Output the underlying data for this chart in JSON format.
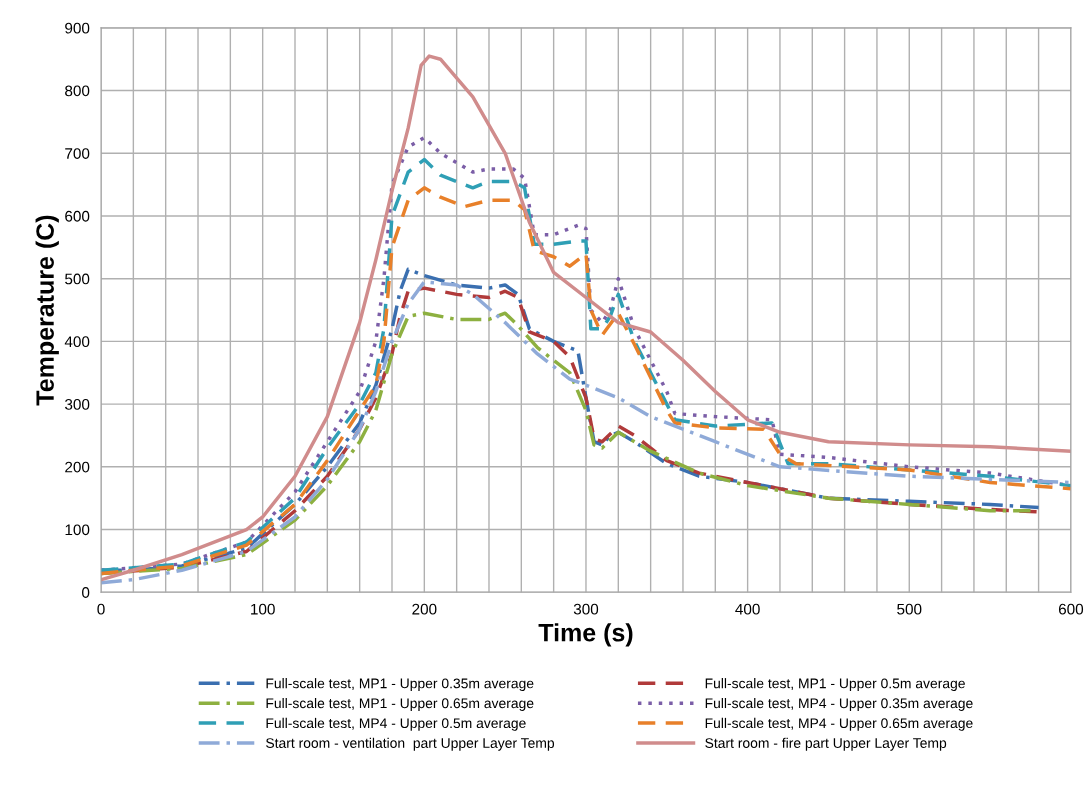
{
  "chart_data": {
    "type": "line",
    "xlabel": "Time (s)",
    "ylabel": "Temperature (C)",
    "xlim": [
      0,
      600
    ],
    "ylim": [
      0,
      900
    ],
    "xticks": [
      0,
      {
        "value": 20,
        "label": null
      },
      {
        "value": 40,
        "label": null
      },
      {
        "value": 60,
        "label": null
      },
      {
        "value": 80,
        "label": null
      },
      100,
      {
        "value": 120,
        "label": null
      },
      {
        "value": 140,
        "label": null
      },
      {
        "value": 160,
        "label": null
      },
      {
        "value": 180,
        "label": null
      },
      200,
      {
        "value": 220,
        "label": null
      },
      {
        "value": 240,
        "label": null
      },
      {
        "value": 260,
        "label": null
      },
      {
        "value": 280,
        "label": null
      },
      300,
      {
        "value": 320,
        "label": null
      },
      {
        "value": 340,
        "label": null
      },
      {
        "value": 360,
        "label": null
      },
      {
        "value": 380,
        "label": null
      },
      400,
      {
        "value": 420,
        "label": null
      },
      {
        "value": 440,
        "label": null
      },
      {
        "value": 460,
        "label": null
      },
      {
        "value": 480,
        "label": null
      },
      500,
      {
        "value": 520,
        "label": null
      },
      {
        "value": 540,
        "label": null
      },
      {
        "value": 560,
        "label": null
      },
      {
        "value": 580,
        "label": null
      },
      600
    ],
    "yticks": [
      0,
      100,
      200,
      300,
      400,
      500,
      600,
      700,
      800,
      900
    ],
    "grid": true,
    "legend": "bottom",
    "marker": "none",
    "series": [
      {
        "name": "Full-scale test, MP1 - Upper 0.35m average",
        "color": "#3a6fb0",
        "line_style": "dashdot",
        "x": [
          0,
          20,
          50,
          90,
          120,
          140,
          160,
          170,
          180,
          185,
          190,
          200,
          220,
          240,
          250,
          258,
          265,
          280,
          295,
          300,
          305,
          310,
          315,
          320,
          330,
          350,
          370,
          400,
          420,
          450,
          500,
          550,
          580
        ],
        "values": [
          35,
          35,
          42,
          70,
          140,
          200,
          270,
          330,
          420,
          480,
          515,
          505,
          490,
          485,
          490,
          475,
          420,
          400,
          385,
          310,
          240,
          235,
          250,
          255,
          240,
          205,
          185,
          175,
          165,
          150,
          145,
          140,
          135
        ]
      },
      {
        "name": "Full-scale test, MP1 - Upper 0.5m average",
        "color": "#b03a3a",
        "line_style": "dashed",
        "x": [
          0,
          50,
          90,
          120,
          140,
          160,
          170,
          180,
          185,
          190,
          200,
          220,
          240,
          250,
          258,
          265,
          280,
          290,
          300,
          305,
          310,
          320,
          330,
          350,
          370,
          400,
          450,
          500,
          550,
          580
        ],
        "values": [
          30,
          40,
          65,
          130,
          185,
          260,
          310,
          380,
          440,
          480,
          485,
          475,
          470,
          480,
          470,
          415,
          400,
          375,
          310,
          245,
          240,
          265,
          250,
          210,
          190,
          175,
          150,
          140,
          132,
          128
        ]
      },
      {
        "name": "Full-scale test, MP1 - Upper 0.65m average",
        "color": "#8db040",
        "line_style": "dashdot",
        "x": [
          0,
          50,
          90,
          120,
          140,
          160,
          170,
          180,
          190,
          200,
          220,
          240,
          250,
          258,
          270,
          290,
          300,
          305,
          310,
          320,
          340,
          370,
          400,
          450,
          500,
          550,
          575
        ],
        "values": [
          30,
          38,
          60,
          115,
          170,
          240,
          290,
          380,
          440,
          445,
          435,
          435,
          445,
          425,
          390,
          350,
          290,
          235,
          230,
          255,
          225,
          190,
          170,
          150,
          140,
          130,
          130
        ]
      },
      {
        "name": "Full-scale test, MP4 - Upper 0.35m average",
        "color": "#7b5ea7",
        "line_style": "dotted",
        "x": [
          0,
          50,
          90,
          120,
          140,
          160,
          170,
          175,
          180,
          190,
          200,
          210,
          230,
          240,
          255,
          262,
          268,
          280,
          295,
          300,
          303,
          310,
          315,
          320,
          330,
          350,
          355,
          380,
          415,
          420,
          450,
          500,
          550,
          600
        ],
        "values": [
          35,
          45,
          80,
          160,
          240,
          320,
          400,
          500,
          650,
          710,
          725,
          700,
          670,
          675,
          675,
          660,
          570,
          570,
          585,
          580,
          450,
          430,
          450,
          500,
          420,
          320,
          285,
          280,
          275,
          220,
          215,
          200,
          190,
          170
        ]
      },
      {
        "name": "Full-scale test, MP4 - Upper 0.5m average",
        "color": "#2f9fb5",
        "line_style": "dashed",
        "x": [
          0,
          50,
          90,
          120,
          140,
          160,
          170,
          175,
          180,
          190,
          200,
          210,
          230,
          240,
          255,
          262,
          268,
          280,
          295,
          300,
          303,
          310,
          315,
          320,
          330,
          350,
          355,
          380,
          415,
          425,
          450,
          500,
          550,
          600
        ],
        "values": [
          35,
          45,
          80,
          150,
          230,
          300,
          350,
          420,
          600,
          670,
          690,
          665,
          645,
          655,
          655,
          645,
          555,
          555,
          560,
          560,
          420,
          420,
          440,
          475,
          400,
          300,
          275,
          265,
          270,
          205,
          205,
          195,
          185,
          170
        ]
      },
      {
        "name": "Full-scale test, MP4 - Upper 0.65m average",
        "color": "#e8802a",
        "line_style": "dashed",
        "x": [
          0,
          50,
          90,
          120,
          140,
          160,
          170,
          175,
          180,
          190,
          200,
          210,
          225,
          240,
          255,
          262,
          268,
          280,
          290,
          300,
          303,
          310,
          320,
          330,
          350,
          355,
          380,
          410,
          420,
          430,
          500,
          550,
          600
        ],
        "values": [
          30,
          42,
          75,
          140,
          210,
          290,
          330,
          400,
          550,
          625,
          645,
          630,
          615,
          625,
          625,
          610,
          545,
          535,
          520,
          540,
          450,
          410,
          445,
          395,
          290,
          270,
          262,
          260,
          220,
          205,
          195,
          175,
          165
        ]
      },
      {
        "name": "Start room - ventilation  part Upper Layer Temp",
        "color": "#8faad8",
        "line_style": "dashdot",
        "x": [
          0,
          20,
          50,
          90,
          120,
          140,
          160,
          170,
          180,
          190,
          200,
          220,
          230,
          250,
          270,
          290,
          320,
          340,
          380,
          420,
          500,
          600
        ],
        "values": [
          15,
          20,
          35,
          65,
          120,
          180,
          260,
          320,
          400,
          460,
          495,
          490,
          475,
          430,
          380,
          340,
          310,
          280,
          240,
          200,
          185,
          175
        ]
      },
      {
        "name": "Start room - fire part Upper Layer Temp",
        "color": "#d08c8c",
        "line_style": "solid",
        "x": [
          0,
          20,
          50,
          90,
          100,
          120,
          140,
          160,
          170,
          180,
          190,
          198,
          203,
          210,
          230,
          250,
          265,
          280,
          300,
          320,
          340,
          360,
          380,
          400,
          420,
          450,
          500,
          550,
          600
        ],
        "values": [
          20,
          35,
          60,
          100,
          120,
          185,
          280,
          430,
          530,
          640,
          740,
          840,
          855,
          850,
          790,
          700,
          590,
          510,
          470,
          430,
          415,
          370,
          320,
          275,
          255,
          240,
          235,
          232,
          225
        ]
      }
    ]
  }
}
